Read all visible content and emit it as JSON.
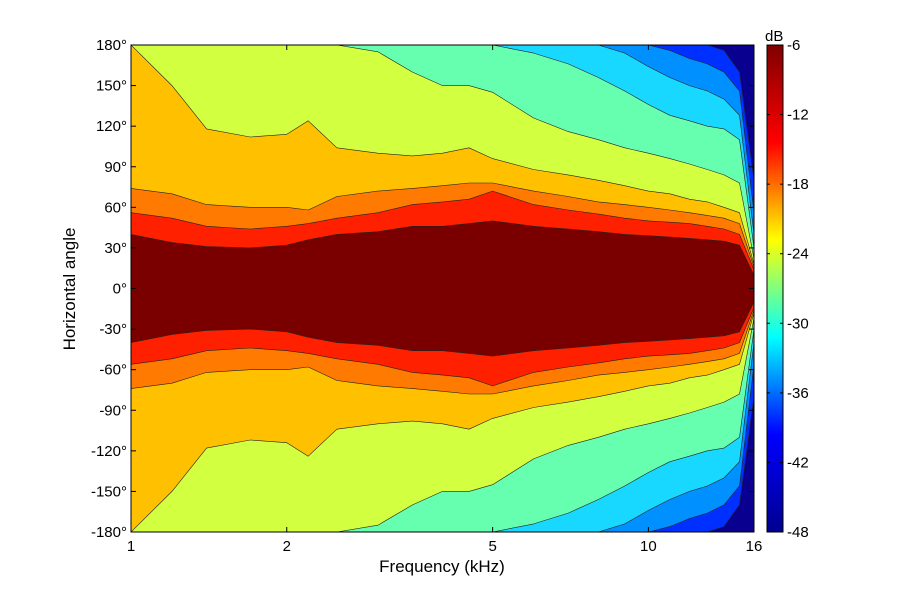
{
  "chart_data": {
    "type": "heatmap",
    "subtype": "filled-contour",
    "title": "",
    "xlabel": "Frequency (kHz)",
    "ylabel": "Horizontal angle",
    "x_scale": "log",
    "xlim": [
      1,
      16
    ],
    "ylim": [
      -180,
      180
    ],
    "x_ticks": [
      1,
      2,
      5,
      10,
      16
    ],
    "x_tick_labels": [
      "1",
      "2",
      "5",
      "10",
      "16"
    ],
    "y_ticks": [
      180,
      150,
      120,
      90,
      60,
      30,
      0,
      -30,
      -60,
      -90,
      -120,
      -150,
      -180
    ],
    "y_tick_labels": [
      "180°",
      "150°",
      "120°",
      "90°",
      "60°",
      "30°",
      "0°",
      "-30°",
      "-60°",
      "-90°",
      "-120°",
      "-150°",
      "-180°"
    ],
    "colorbar": {
      "label": "dB",
      "range": [
        -48,
        -6
      ],
      "ticks": [
        -6,
        -12,
        -18,
        -24,
        -30,
        -36,
        -42,
        -48
      ],
      "tick_labels": [
        "-6",
        "-12",
        "-18",
        "-24",
        "-30",
        "-36",
        "-42",
        "-48"
      ],
      "colormap": "jet",
      "colormap_stops": [
        "#00008f",
        "#0000ff",
        "#00ffff",
        "#ffff00",
        "#ff0000",
        "#800000"
      ]
    },
    "level_colors": [
      "#0a0090",
      "#0030ff",
      "#0090ff",
      "#19d8ff",
      "#66ffb0",
      "#d2ff40",
      "#ffc000",
      "#ff7a00",
      "#ff2000",
      "#7a0000"
    ],
    "contour_levels_db": [
      -42,
      -38,
      -34,
      -30,
      -27,
      -24,
      -18,
      -15,
      -12
    ],
    "grid": false,
    "legend": "colorbar-right",
    "band_edges_deg": {
      "description": "Positive half-width (degrees, symmetric about 0) where the level falls below each contour, versus frequency",
      "frequencies_khz": [
        1,
        1.2,
        1.4,
        1.7,
        2,
        2.2,
        2.5,
        3,
        3.5,
        4,
        4.5,
        5,
        6,
        7,
        8,
        9,
        10,
        11,
        12,
        13,
        14,
        15,
        16
      ],
      "c-12": [
        40,
        34,
        31,
        30,
        32,
        36,
        40,
        42,
        46,
        46,
        48,
        50,
        46,
        44,
        42,
        40,
        39,
        38,
        37,
        36,
        35,
        32,
        10
      ],
      "c-15": [
        56,
        52,
        46,
        44,
        46,
        48,
        52,
        56,
        62,
        64,
        66,
        72,
        62,
        58,
        55,
        52,
        50,
        49,
        48,
        46,
        44,
        40,
        14
      ],
      "c-18": [
        74,
        70,
        62,
        60,
        60,
        58,
        68,
        72,
        74,
        76,
        78,
        78,
        72,
        68,
        64,
        62,
        60,
        58,
        56,
        54,
        52,
        48,
        16
      ],
      "c-24": [
        180,
        150,
        118,
        112,
        114,
        124,
        104,
        100,
        98,
        100,
        104,
        96,
        88,
        84,
        80,
        76,
        72,
        70,
        66,
        64,
        60,
        56,
        18
      ],
      "c-27": [
        180,
        180,
        180,
        180,
        180,
        180,
        180,
        175,
        160,
        150,
        150,
        145,
        126,
        116,
        110,
        104,
        100,
        96,
        92,
        88,
        84,
        78,
        22
      ],
      "c-30": [
        180,
        180,
        180,
        180,
        180,
        180,
        180,
        180,
        180,
        180,
        180,
        180,
        174,
        166,
        156,
        146,
        136,
        128,
        124,
        120,
        118,
        110,
        30
      ],
      "c-34": [
        180,
        180,
        180,
        180,
        180,
        180,
        180,
        180,
        180,
        180,
        180,
        180,
        180,
        180,
        180,
        174,
        164,
        156,
        150,
        146,
        140,
        128,
        40
      ],
      "c-38": [
        180,
        180,
        180,
        180,
        180,
        180,
        180,
        180,
        180,
        180,
        180,
        180,
        180,
        180,
        180,
        180,
        180,
        176,
        170,
        166,
        160,
        146,
        56
      ],
      "c-42": [
        180,
        180,
        180,
        180,
        180,
        180,
        180,
        180,
        180,
        180,
        180,
        180,
        180,
        180,
        180,
        180,
        180,
        180,
        180,
        180,
        176,
        160,
        80
      ]
    }
  }
}
